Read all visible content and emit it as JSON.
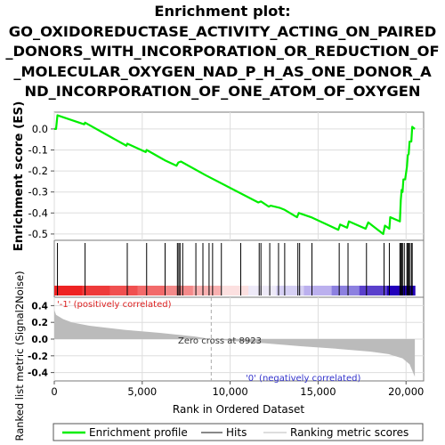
{
  "chart_data": {
    "type": "line",
    "title_lines": [
      "Enrichment plot:",
      "GO_OXIDOREDUCTASE_ACTIVITY_ACTING_ON_PAIRED",
      "_DONORS_WITH_INCORPORATION_OR_REDUCTION_OF",
      "_MOLECULAR_OXYGEN_NAD_P_H_AS_ONE_DONOR_A",
      "ND_INCORPORATION_OF_ONE_ATOM_OF_OXYGEN"
    ],
    "es_ylabel": "Enrichment score (ES)",
    "rank_ylabel": "Ranked list metric (Signal2Noise)",
    "xlabel": "Rank in Ordered Dataset",
    "xlim": [
      0,
      21000
    ],
    "es_ylim": [
      -0.53,
      0.08
    ],
    "rank_ylim": [
      -0.5,
      0.5
    ],
    "x_ticks": [
      0,
      5000,
      10000,
      15000,
      20000
    ],
    "x_tick_labels": [
      "0",
      "5,000",
      "10,000",
      "15,000",
      "20,000"
    ],
    "es_ticks": [
      0.0,
      -0.1,
      -0.2,
      -0.3,
      -0.4,
      -0.5
    ],
    "es_tick_labels": [
      "0.0",
      "-0.1",
      "-0.2",
      "-0.3",
      "-0.4",
      "-0.5"
    ],
    "rank_ticks": [
      0.4,
      0.2,
      0.0,
      -0.2,
      -0.4
    ],
    "rank_tick_labels": [
      "0.4",
      "0.2",
      "0.0",
      "-0.2",
      "-0.4"
    ],
    "es_profile": [
      [
        0,
        0.0
      ],
      [
        100,
        0.0
      ],
      [
        180,
        0.065
      ],
      [
        1700,
        0.022
      ],
      [
        1750,
        0.03
      ],
      [
        4100,
        -0.08
      ],
      [
        4150,
        -0.07
      ],
      [
        5200,
        -0.11
      ],
      [
        5250,
        -0.1
      ],
      [
        6200,
        -0.145
      ],
      [
        6300,
        -0.15
      ],
      [
        6950,
        -0.175
      ],
      [
        7050,
        -0.16
      ],
      [
        7200,
        -0.155
      ],
      [
        8600,
        -0.22
      ],
      [
        11600,
        -0.35
      ],
      [
        11750,
        -0.345
      ],
      [
        12200,
        -0.37
      ],
      [
        12300,
        -0.365
      ],
      [
        12800,
        -0.375
      ],
      [
        13100,
        -0.385
      ],
      [
        13800,
        -0.42
      ],
      [
        13900,
        -0.4
      ],
      [
        14600,
        -0.42
      ],
      [
        16150,
        -0.48
      ],
      [
        16250,
        -0.455
      ],
      [
        16650,
        -0.47
      ],
      [
        16750,
        -0.44
      ],
      [
        17700,
        -0.475
      ],
      [
        17850,
        -0.445
      ],
      [
        18700,
        -0.5
      ],
      [
        18800,
        -0.46
      ],
      [
        19050,
        -0.475
      ],
      [
        19100,
        -0.42
      ],
      [
        19650,
        -0.44
      ],
      [
        19700,
        -0.34
      ],
      [
        19750,
        -0.29
      ],
      [
        19800,
        -0.3
      ],
      [
        19850,
        -0.24
      ],
      [
        19950,
        -0.24
      ],
      [
        20050,
        -0.18
      ],
      [
        20100,
        -0.125
      ],
      [
        20150,
        -0.12
      ],
      [
        20200,
        -0.06
      ],
      [
        20300,
        -0.06
      ],
      [
        20350,
        0.01
      ],
      [
        20500,
        0.0
      ]
    ],
    "hits": [
      180,
      1750,
      4150,
      5250,
      6300,
      7000,
      7080,
      7150,
      7300,
      8050,
      8450,
      8800,
      9000,
      9500,
      10600,
      11650,
      11750,
      12250,
      12750,
      13100,
      13850,
      13950,
      14650,
      16200,
      16700,
      17750,
      18750,
      19050,
      19650,
      19700,
      19750,
      19800,
      19900,
      20050,
      20100,
      20150,
      20200,
      20300,
      20350
    ],
    "rank_metric": [
      [
        0,
        0.35
      ],
      [
        100,
        0.29
      ],
      [
        500,
        0.24
      ],
      [
        1000,
        0.2
      ],
      [
        2000,
        0.16
      ],
      [
        4000,
        0.11
      ],
      [
        6000,
        0.075
      ],
      [
        8000,
        0.03
      ],
      [
        8923,
        0.0
      ],
      [
        10000,
        -0.02
      ],
      [
        12000,
        -0.05
      ],
      [
        14000,
        -0.085
      ],
      [
        16000,
        -0.115
      ],
      [
        18000,
        -0.15
      ],
      [
        19000,
        -0.18
      ],
      [
        19800,
        -0.23
      ],
      [
        20200,
        -0.3
      ],
      [
        20400,
        -0.4
      ],
      [
        20500,
        -0.45
      ]
    ],
    "zero_cross_label": "Zero cross at 8923",
    "zero_cross_x": 8923,
    "pos_label": "'-1' (positively correlated)",
    "neg_label": "'0' (negatively correlated)",
    "legend": [
      "Enrichment profile",
      "Hits",
      "Ranking metric scores"
    ],
    "colors": {
      "profile": "#00ee00",
      "hits": "#000000",
      "metric": "#bbbbbb",
      "pos_label": "#dd2222",
      "neg_label": "#3333cc",
      "zero_label": "#333333",
      "heat": [
        "#ee2222",
        "#ee3a3a",
        "#f05050",
        "#f26a6a",
        "#f48a8a",
        "#f8b0b0",
        "#fce0e0",
        "#eeeaf8",
        "#d6d0f4",
        "#bbb0ee",
        "#8c80e0",
        "#5a40cc",
        "#2200bb"
      ]
    }
  }
}
